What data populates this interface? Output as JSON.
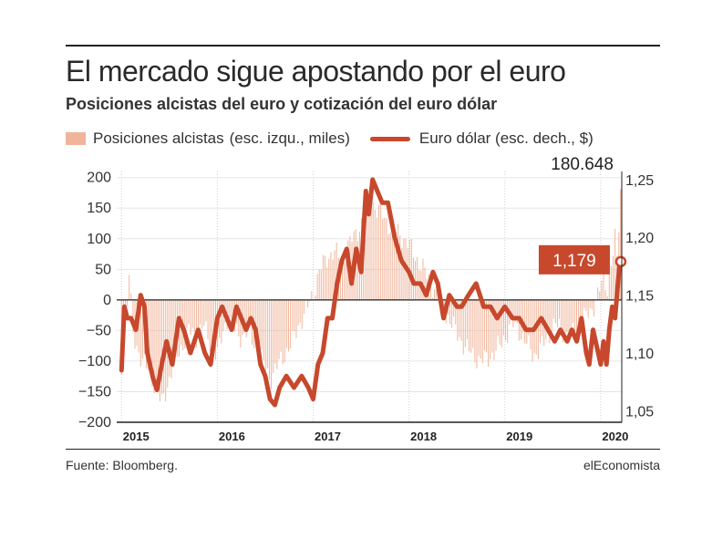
{
  "header": {
    "title": "El mercado sigue apostando por el euro",
    "subtitle": "Posiciones alcistas del euro y cotización del euro dólar"
  },
  "legend": {
    "bars_label": "Posiciones alcistas",
    "bars_note": "(esc. izqu., miles)",
    "line_label": "Euro dólar (esc. dech., $)"
  },
  "footer": {
    "source": "Fuente: Bloomberg.",
    "brand": "elEconomista"
  },
  "colors": {
    "bars": "#f0b49a",
    "line": "#c7482c",
    "callout_bg": "#c7482c"
  },
  "chart_data": {
    "type": "bar+line",
    "x_labels": [
      "2015",
      "2016",
      "2017",
      "2018",
      "2019",
      "2020"
    ],
    "x_range": [
      2014.95,
      2020.22
    ],
    "left_axis": {
      "ylim": [
        -200,
        210
      ],
      "ticks": [
        -200,
        -150,
        -100,
        -50,
        0,
        50,
        100,
        150,
        200
      ]
    },
    "right_axis": {
      "ylim": [
        1.04,
        1.257
      ],
      "ticks": [
        "1,05",
        "1,10",
        "1,15",
        "1,20",
        "1,25"
      ],
      "tick_values": [
        1.05,
        1.1,
        1.15,
        1.2,
        1.25
      ]
    },
    "annotations": {
      "bar_last_label": "180.648",
      "line_last_label": "1,179"
    },
    "series": [
      {
        "name": "Posiciones alcistas",
        "axis": "left",
        "kind": "bar",
        "points": [
          [
            2015.0,
            -110
          ],
          [
            2015.05,
            -30
          ],
          [
            2015.08,
            45
          ],
          [
            2015.12,
            -60
          ],
          [
            2015.17,
            -80
          ],
          [
            2015.22,
            -100
          ],
          [
            2015.3,
            -120
          ],
          [
            2015.37,
            -150
          ],
          [
            2015.42,
            -170
          ],
          [
            2015.48,
            -140
          ],
          [
            2015.55,
            -100
          ],
          [
            2015.62,
            -80
          ],
          [
            2015.7,
            -50
          ],
          [
            2015.78,
            -60
          ],
          [
            2015.85,
            -40
          ],
          [
            2015.92,
            -70
          ],
          [
            2016.0,
            -90
          ],
          [
            2016.05,
            -60
          ],
          [
            2016.1,
            -30
          ],
          [
            2016.17,
            -50
          ],
          [
            2016.25,
            -60
          ],
          [
            2016.33,
            -50
          ],
          [
            2016.4,
            -80
          ],
          [
            2016.47,
            -100
          ],
          [
            2016.55,
            -130
          ],
          [
            2016.62,
            -110
          ],
          [
            2016.7,
            -90
          ],
          [
            2016.78,
            -70
          ],
          [
            2016.85,
            -40
          ],
          [
            2016.92,
            -20
          ],
          [
            2017.0,
            10
          ],
          [
            2017.07,
            50
          ],
          [
            2017.15,
            70
          ],
          [
            2017.22,
            80
          ],
          [
            2017.3,
            60
          ],
          [
            2017.37,
            90
          ],
          [
            2017.45,
            110
          ],
          [
            2017.52,
            130
          ],
          [
            2017.58,
            170
          ],
          [
            2017.65,
            150
          ],
          [
            2017.72,
            140
          ],
          [
            2017.8,
            120
          ],
          [
            2017.88,
            110
          ],
          [
            2017.95,
            100
          ],
          [
            2018.0,
            90
          ],
          [
            2018.07,
            70
          ],
          [
            2018.15,
            50
          ],
          [
            2018.22,
            30
          ],
          [
            2018.3,
            10
          ],
          [
            2018.37,
            -20
          ],
          [
            2018.45,
            -40
          ],
          [
            2018.52,
            -60
          ],
          [
            2018.6,
            -80
          ],
          [
            2018.67,
            -90
          ],
          [
            2018.75,
            -100
          ],
          [
            2018.82,
            -95
          ],
          [
            2018.9,
            -85
          ],
          [
            2018.97,
            -70
          ],
          [
            2019.0,
            -60
          ],
          [
            2019.08,
            -40
          ],
          [
            2019.15,
            -50
          ],
          [
            2019.22,
            -70
          ],
          [
            2019.3,
            -90
          ],
          [
            2019.37,
            -80
          ],
          [
            2019.45,
            -60
          ],
          [
            2019.52,
            -40
          ],
          [
            2019.6,
            -50
          ],
          [
            2019.68,
            -60
          ],
          [
            2019.75,
            -50
          ],
          [
            2019.82,
            -30
          ],
          [
            2019.9,
            -20
          ],
          [
            2019.97,
            10
          ],
          [
            2020.02,
            30
          ],
          [
            2020.07,
            20
          ],
          [
            2020.1,
            50
          ],
          [
            2020.13,
            80
          ],
          [
            2020.15,
            100
          ],
          [
            2020.17,
            60
          ],
          [
            2020.19,
            120
          ],
          [
            2020.21,
            180.648
          ]
        ]
      },
      {
        "name": "Euro dólar",
        "axis": "right",
        "kind": "line",
        "points": [
          [
            2015.0,
            1.085
          ],
          [
            2015.03,
            1.14
          ],
          [
            2015.06,
            1.13
          ],
          [
            2015.1,
            1.13
          ],
          [
            2015.15,
            1.12
          ],
          [
            2015.2,
            1.15
          ],
          [
            2015.24,
            1.14
          ],
          [
            2015.27,
            1.1
          ],
          [
            2015.33,
            1.078
          ],
          [
            2015.37,
            1.068
          ],
          [
            2015.42,
            1.09
          ],
          [
            2015.47,
            1.11
          ],
          [
            2015.53,
            1.09
          ],
          [
            2015.6,
            1.13
          ],
          [
            2015.65,
            1.12
          ],
          [
            2015.72,
            1.1
          ],
          [
            2015.8,
            1.12
          ],
          [
            2015.87,
            1.1
          ],
          [
            2015.93,
            1.09
          ],
          [
            2016.0,
            1.13
          ],
          [
            2016.05,
            1.14
          ],
          [
            2016.1,
            1.13
          ],
          [
            2016.15,
            1.12
          ],
          [
            2016.2,
            1.14
          ],
          [
            2016.25,
            1.13
          ],
          [
            2016.3,
            1.12
          ],
          [
            2016.35,
            1.13
          ],
          [
            2016.4,
            1.12
          ],
          [
            2016.45,
            1.09
          ],
          [
            2016.5,
            1.08
          ],
          [
            2016.55,
            1.06
          ],
          [
            2016.6,
            1.055
          ],
          [
            2016.65,
            1.07
          ],
          [
            2016.72,
            1.08
          ],
          [
            2016.8,
            1.07
          ],
          [
            2016.88,
            1.08
          ],
          [
            2016.95,
            1.07
          ],
          [
            2017.0,
            1.06
          ],
          [
            2017.05,
            1.09
          ],
          [
            2017.1,
            1.1
          ],
          [
            2017.15,
            1.13
          ],
          [
            2017.2,
            1.13
          ],
          [
            2017.25,
            1.16
          ],
          [
            2017.3,
            1.18
          ],
          [
            2017.35,
            1.19
          ],
          [
            2017.4,
            1.16
          ],
          [
            2017.45,
            1.19
          ],
          [
            2017.5,
            1.17
          ],
          [
            2017.55,
            1.24
          ],
          [
            2017.58,
            1.22
          ],
          [
            2017.62,
            1.25
          ],
          [
            2017.67,
            1.24
          ],
          [
            2017.72,
            1.23
          ],
          [
            2017.78,
            1.23
          ],
          [
            2017.85,
            1.2
          ],
          [
            2017.92,
            1.18
          ],
          [
            2018.0,
            1.17
          ],
          [
            2018.05,
            1.16
          ],
          [
            2018.12,
            1.16
          ],
          [
            2018.18,
            1.15
          ],
          [
            2018.25,
            1.17
          ],
          [
            2018.3,
            1.16
          ],
          [
            2018.36,
            1.13
          ],
          [
            2018.42,
            1.15
          ],
          [
            2018.5,
            1.14
          ],
          [
            2018.55,
            1.14
          ],
          [
            2018.62,
            1.15
          ],
          [
            2018.7,
            1.16
          ],
          [
            2018.78,
            1.14
          ],
          [
            2018.85,
            1.14
          ],
          [
            2018.92,
            1.13
          ],
          [
            2019.0,
            1.14
          ],
          [
            2019.08,
            1.13
          ],
          [
            2019.15,
            1.13
          ],
          [
            2019.22,
            1.12
          ],
          [
            2019.3,
            1.12
          ],
          [
            2019.38,
            1.13
          ],
          [
            2019.45,
            1.12
          ],
          [
            2019.52,
            1.11
          ],
          [
            2019.58,
            1.12
          ],
          [
            2019.65,
            1.11
          ],
          [
            2019.7,
            1.12
          ],
          [
            2019.75,
            1.11
          ],
          [
            2019.8,
            1.13
          ],
          [
            2019.85,
            1.1
          ],
          [
            2019.88,
            1.09
          ],
          [
            2019.92,
            1.12
          ],
          [
            2020.0,
            1.09
          ],
          [
            2020.03,
            1.11
          ],
          [
            2020.06,
            1.09
          ],
          [
            2020.09,
            1.12
          ],
          [
            2020.12,
            1.14
          ],
          [
            2020.15,
            1.13
          ],
          [
            2020.18,
            1.16
          ],
          [
            2020.2,
            1.18
          ],
          [
            2020.21,
            1.179
          ]
        ]
      }
    ]
  }
}
